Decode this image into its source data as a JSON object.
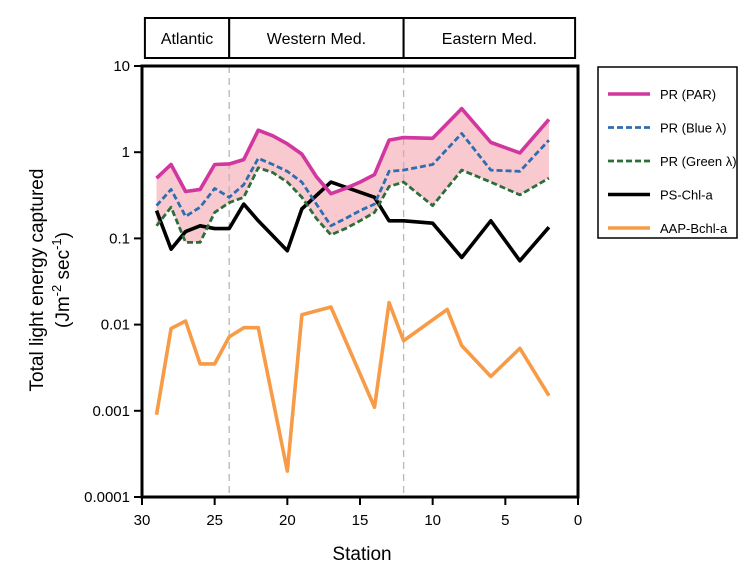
{
  "chart_data": {
    "type": "line",
    "xlabel": "Station",
    "ylabel_line1": "Total light energy captured",
    "ylabel_unit_prefix": "(Jm",
    "ylabel_unit_exp1": "-2",
    "ylabel_unit_mid": " sec",
    "ylabel_unit_exp2": "-1",
    "ylabel_unit_suffix": ")",
    "xlim": [
      30,
      0
    ],
    "ylim": [
      0.0001,
      10
    ],
    "yscale": "log",
    "x_ticks": [
      "30",
      "25",
      "20",
      "15",
      "10",
      "5",
      "0"
    ],
    "y_ticks": [
      "10",
      "1",
      "0.1",
      "0.01",
      "0.001",
      "0.0001"
    ],
    "regions": [
      {
        "label": "Atlantic",
        "from": 29.8,
        "to": 24
      },
      {
        "label": "Western Med.",
        "from": 24,
        "to": 12
      },
      {
        "label": "Eastern  Med.",
        "from": 12,
        "to": 0.2
      }
    ],
    "region_dividers": [
      24,
      12
    ],
    "shaded_band": {
      "between": [
        "PR (PAR)",
        "PR (Green λ)"
      ],
      "color": "#f8c9cf"
    },
    "legend_position": "right",
    "series": [
      {
        "name": "PR (PAR)",
        "color": "#d2369f",
        "style": "solid",
        "x": [
          29,
          28,
          27,
          26,
          25,
          24,
          23,
          22,
          21,
          20,
          19,
          18,
          17,
          16,
          15,
          14,
          13,
          12,
          10,
          8,
          6,
          4,
          2
        ],
        "y": [
          0.5,
          0.72,
          0.35,
          0.37,
          0.72,
          0.73,
          0.82,
          1.8,
          1.55,
          1.25,
          0.95,
          0.52,
          0.33,
          0.38,
          0.45,
          0.55,
          1.38,
          1.48,
          1.45,
          3.2,
          1.3,
          0.98,
          2.4
        ]
      },
      {
        "name": "PR (Blue λ)",
        "color": "#2e6db0",
        "style": "dashed",
        "x": [
          29,
          28,
          27,
          26,
          25,
          24,
          23,
          22,
          21,
          20,
          19,
          18,
          17,
          16,
          15,
          14,
          13,
          12,
          10,
          8,
          6,
          4,
          2
        ],
        "y": [
          0.24,
          0.37,
          0.18,
          0.23,
          0.38,
          0.3,
          0.42,
          0.85,
          0.72,
          0.6,
          0.45,
          0.25,
          0.14,
          0.17,
          0.21,
          0.25,
          0.6,
          0.62,
          0.72,
          1.65,
          0.62,
          0.6,
          1.38
        ]
      },
      {
        "name": "PR (Green λ)",
        "color": "#2a6e3a",
        "style": "dashed",
        "x": [
          29,
          28,
          27,
          26,
          25,
          24,
          23,
          22,
          21,
          20,
          19,
          18,
          17,
          16,
          15,
          14,
          13,
          12,
          10,
          8,
          6,
          4,
          2
        ],
        "y": [
          0.14,
          0.23,
          0.09,
          0.09,
          0.2,
          0.26,
          0.3,
          0.66,
          0.58,
          0.45,
          0.3,
          0.17,
          0.11,
          0.13,
          0.16,
          0.2,
          0.4,
          0.45,
          0.24,
          0.62,
          0.45,
          0.32,
          0.5
        ]
      },
      {
        "name": "PS-Chl-a",
        "color": "#000000",
        "style": "solid",
        "x": [
          29,
          28,
          27,
          26,
          25,
          24,
          23,
          22,
          20,
          19,
          17,
          14,
          13,
          12,
          10,
          8,
          6,
          4,
          2
        ],
        "y": [
          0.21,
          0.075,
          0.12,
          0.14,
          0.13,
          0.13,
          0.25,
          0.16,
          0.072,
          0.22,
          0.45,
          0.3,
          0.16,
          0.16,
          0.15,
          0.06,
          0.16,
          0.055,
          0.135
        ]
      },
      {
        "name": "AAP-Bchl-a",
        "color": "#f79b46",
        "style": "solid",
        "x": [
          29,
          28,
          27,
          26,
          25,
          24,
          23,
          22,
          20,
          19,
          17,
          14,
          13,
          12,
          9,
          8,
          6,
          4,
          2
        ],
        "y": [
          0.0009,
          0.009,
          0.011,
          0.0035,
          0.0035,
          0.0072,
          0.0092,
          0.0092,
          0.0002,
          0.013,
          0.016,
          0.0011,
          0.018,
          0.0065,
          0.015,
          0.0057,
          0.0025,
          0.0053,
          0.0015
        ]
      }
    ]
  }
}
